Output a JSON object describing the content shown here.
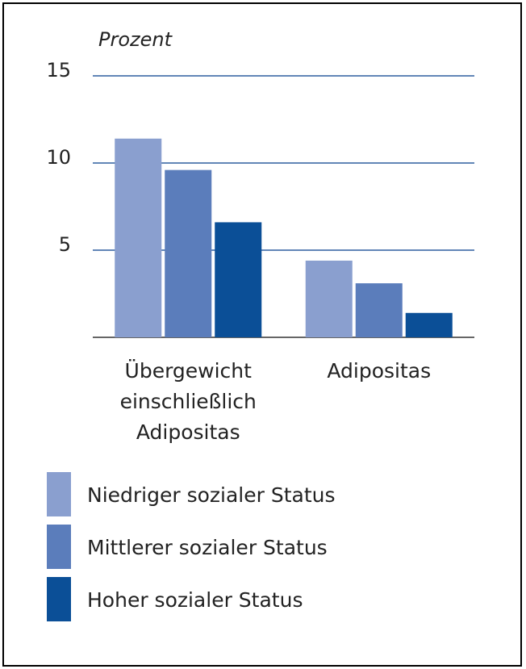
{
  "chart_data": {
    "type": "bar",
    "y_label": "Prozent",
    "categories": [
      "Übergewicht einschließlich Adipositas",
      "Adipositas"
    ],
    "series": [
      {
        "name": "Niedriger sozialer Status",
        "color": "#8a9fcf",
        "values": [
          11.4,
          4.4
        ]
      },
      {
        "name": "Mittlerer sozialer Status",
        "color": "#5b7dbb",
        "values": [
          9.6,
          3.1
        ]
      },
      {
        "name": "Hoher sozialer Status",
        "color": "#0b4f97",
        "values": [
          6.6,
          1.4
        ]
      }
    ],
    "ylim": [
      0,
      15
    ],
    "yticks": [
      5,
      10,
      15
    ],
    "grid": true
  }
}
